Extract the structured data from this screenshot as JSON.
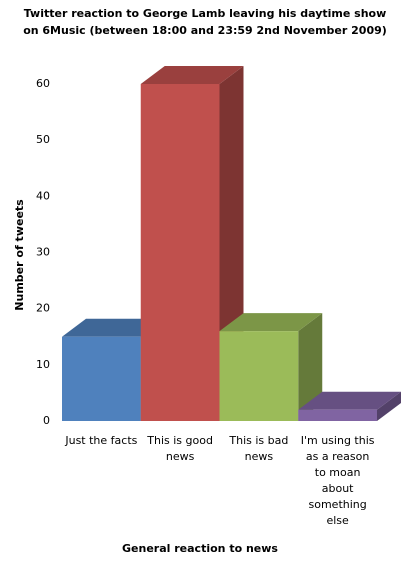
{
  "chart_data": {
    "type": "bar3d",
    "title": [
      "Twitter reaction to George Lamb leaving his daytime show",
      "on 6Music (between 18:00 and 23:59 2nd November 2009)"
    ],
    "x_label": "General reaction to news",
    "y_label": "Number of tweets",
    "categories": [
      "Just the facts",
      "This is good news",
      "This is bad news",
      "I'm using this as a reason to moan about something else"
    ],
    "values": [
      15,
      60,
      16,
      2
    ],
    "colors": [
      "#4f81bd",
      "#c0504d",
      "#9bbb59",
      "#8064a2"
    ],
    "ylim": [
      0,
      60
    ],
    "yticks": [
      0,
      10,
      20,
      30,
      40,
      50,
      60
    ],
    "grid": false
  }
}
